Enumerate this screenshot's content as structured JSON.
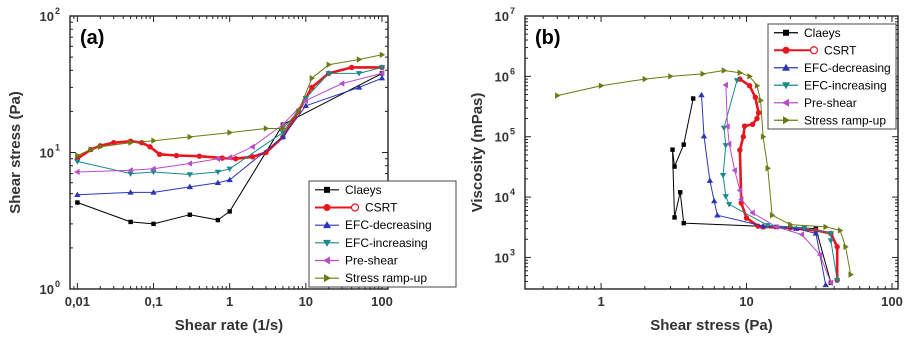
{
  "chart_data": [
    {
      "type": "line",
      "panel_label": "(a)",
      "xlabel": "Shear rate (1/s)",
      "ylabel": "Shear stress (Pa)",
      "xscale": "log",
      "yscale": "log",
      "xlim": [
        0.008,
        120
      ],
      "ylim": [
        1,
        100
      ],
      "xticks": [
        {
          "v": 0.01,
          "label": "0,01"
        },
        {
          "v": 0.1,
          "label": "0,1"
        },
        {
          "v": 1,
          "label": "1"
        },
        {
          "v": 10,
          "label": "10"
        },
        {
          "v": 100,
          "label": "100"
        }
      ],
      "yticks": [
        {
          "v": 1,
          "label": "10",
          "exp": "0"
        },
        {
          "v": 10,
          "label": "10",
          "exp": "1"
        },
        {
          "v": 100,
          "label": "10",
          "exp": "2"
        }
      ],
      "legend_position": "bottom-right",
      "series": [
        {
          "name": "Claeys",
          "color": "#000000",
          "marker": "square",
          "x": [
            0.01,
            0.05,
            0.1,
            0.3,
            0.7,
            1,
            5,
            100
          ],
          "y": [
            4.3,
            3.1,
            3.0,
            3.5,
            3.2,
            3.7,
            16,
            38
          ]
        },
        {
          "name": "CSRT",
          "color": "#e8141e",
          "marker": "circle",
          "x": [
            0.01,
            0.015,
            0.02,
            0.03,
            0.05,
            0.07,
            0.09,
            0.12,
            0.2,
            0.4,
            0.8,
            1.2,
            2,
            3,
            5,
            8,
            12,
            20,
            40,
            100
          ],
          "y": [
            9,
            10.5,
            11.2,
            11.8,
            12.1,
            11.8,
            11.0,
            9.7,
            9.5,
            9.4,
            9.1,
            9.0,
            9.3,
            10,
            13,
            20,
            30,
            38,
            42,
            42
          ]
        },
        {
          "name": "EFC-decreasing",
          "color": "#2b35b8",
          "marker": "triangle-up",
          "x": [
            0.01,
            0.05,
            0.1,
            0.3,
            0.7,
            1,
            5,
            10,
            50,
            100
          ],
          "y": [
            4.9,
            5.1,
            5.1,
            5.6,
            6.0,
            6.3,
            13,
            22,
            30,
            35
          ]
        },
        {
          "name": "EFC-increasing",
          "color": "#1a8a8a",
          "marker": "triangle-down",
          "x": [
            0.01,
            0.05,
            0.1,
            0.3,
            0.7,
            1,
            5,
            10,
            20,
            50,
            100
          ],
          "y": [
            8.6,
            7.0,
            7.2,
            6.9,
            7.2,
            7.6,
            14,
            25,
            38,
            38,
            42
          ]
        },
        {
          "name": "Pre-shear",
          "color": "#b84dc8",
          "marker": "triangle-left",
          "x": [
            0.01,
            0.05,
            0.1,
            0.3,
            0.7,
            1,
            2,
            5,
            10,
            30,
            100
          ],
          "y": [
            7.2,
            7.4,
            7.6,
            8.3,
            9.0,
            9.2,
            11,
            16,
            24,
            32,
            38
          ]
        },
        {
          "name": "Stress ramp-up",
          "color": "#6b7a12",
          "marker": "triangle-right",
          "x": [
            0.01,
            0.015,
            0.02,
            0.05,
            0.1,
            0.3,
            1,
            3,
            5,
            8,
            12,
            20,
            50,
            100
          ],
          "y": [
            9.5,
            10.5,
            11,
            11.8,
            12.2,
            13,
            14,
            15,
            15,
            20,
            35,
            44,
            48,
            52
          ]
        }
      ]
    },
    {
      "type": "line",
      "panel_label": "(b)",
      "xlabel": "Shear stress (Pa)",
      "ylabel": "Viscosity (mPas)",
      "xscale": "log",
      "yscale": "log",
      "xlim": [
        0.3,
        110
      ],
      "ylim": [
        300,
        10000000
      ],
      "xticks": [
        {
          "v": 1,
          "label": "1"
        },
        {
          "v": 10,
          "label": "10"
        },
        {
          "v": 100,
          "label": "100"
        }
      ],
      "yticks": [
        {
          "v": 1000,
          "label": "10",
          "exp": "3"
        },
        {
          "v": 10000,
          "label": "10",
          "exp": "4"
        },
        {
          "v": 100000,
          "label": "10",
          "exp": "5"
        },
        {
          "v": 1000000,
          "label": "10",
          "exp": "6"
        },
        {
          "v": 10000000,
          "label": "10",
          "exp": "7"
        }
      ],
      "legend_position": "top-right",
      "series": [
        {
          "name": "Claeys",
          "color": "#000000",
          "marker": "square",
          "x": [
            4.3,
            3.7,
            3.2,
            3.1,
            3.2,
            3.5,
            3.7,
            16,
            30,
            38
          ],
          "y": [
            430000,
            74000,
            32000,
            61000,
            4600,
            12000,
            3700,
            3200,
            3000,
            380
          ]
        },
        {
          "name": "CSRT",
          "color": "#e8141e",
          "marker": "circle",
          "x": [
            9,
            10.5,
            11.5,
            12.1,
            11.8,
            11.0,
            9.7,
            9.5,
            9.0,
            9.2,
            10,
            12,
            13,
            20,
            30,
            38,
            42,
            42
          ],
          "y": [
            900000,
            700000,
            450000,
            250000,
            200000,
            160000,
            150000,
            100000,
            60000,
            8000,
            4500,
            3300,
            3200,
            3100,
            2800,
            2500,
            1500,
            420
          ]
        },
        {
          "name": "EFC-decreasing",
          "color": "#2b35b8",
          "marker": "triangle-up",
          "x": [
            4.9,
            5.1,
            5.6,
            6.0,
            6.3,
            13,
            22,
            30,
            35
          ],
          "y": [
            490000,
            102000,
            18700,
            8600,
            5000,
            3300,
            3000,
            2500,
            350
          ]
        },
        {
          "name": "EFC-increasing",
          "color": "#1a8a8a",
          "marker": "triangle-down",
          "x": [
            8.6,
            7.0,
            7.2,
            6.9,
            7.2,
            7.6,
            14,
            25,
            38,
            38,
            42
          ],
          "y": [
            860000,
            140000,
            72000,
            23000,
            10300,
            7600,
            3400,
            3100,
            2500,
            1900,
            420
          ]
        },
        {
          "name": "Pre-shear",
          "color": "#b84dc8",
          "marker": "triangle-left",
          "x": [
            7.2,
            7.4,
            7.6,
            8.3,
            9.0,
            9.2,
            11,
            16,
            24,
            32,
            38
          ],
          "y": [
            720000,
            148000,
            76000,
            27700,
            12900,
            9200,
            5500,
            3200,
            2400,
            1100,
            380
          ]
        },
        {
          "name": "Stress ramp-up",
          "color": "#6b7a12",
          "marker": "triangle-right",
          "x": [
            0.5,
            1,
            2,
            3,
            5,
            7,
            9,
            10.5,
            11.8,
            12.5,
            13,
            14,
            15,
            20,
            35,
            44,
            48,
            52
          ],
          "y": [
            480000,
            700000,
            900000,
            1000000,
            1100000,
            1250000,
            1150000,
            1000000,
            700000,
            400000,
            100000,
            30000,
            5000,
            3500,
            3200,
            2800,
            1500,
            520
          ]
        }
      ]
    }
  ]
}
